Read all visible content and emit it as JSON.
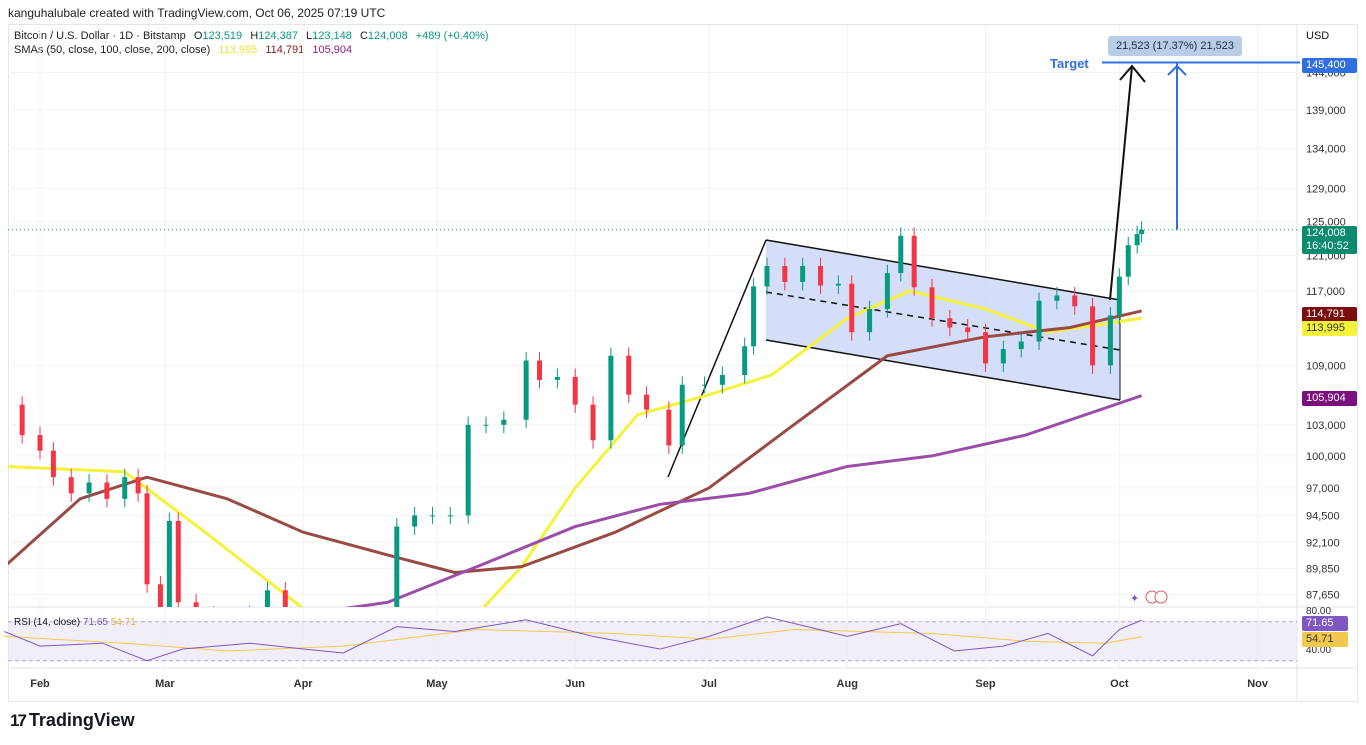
{
  "credit": "kanguhalubale created with TradingView.com, Oct 06, 2025 07:19 UTC",
  "legend": {
    "symbol": "Bitcoin / U.S. Dollar · 1D · Bitstamp",
    "open_label": "O",
    "open": "123,519",
    "high_label": "H",
    "high": "124,387",
    "low_label": "L",
    "low": "123,148",
    "close_label": "C",
    "close": "124,008",
    "change": "+489 (+0.40%)",
    "sma_label": "SMAs (50, close, 100, close, 200, close)",
    "sma50": "113,995",
    "sma100": "114,791",
    "sma200": "105,904"
  },
  "currency": "USD",
  "price_badges": {
    "target": "145,400",
    "last_price": "124,008",
    "countdown": "16:40:52",
    "sma100": "114,791",
    "sma50": "113,995",
    "sma200": "105,904"
  },
  "annotations": {
    "target_label": "Target",
    "measure_label": "21,523 (17.37%) 21,523"
  },
  "rsi": {
    "label": "RSI (14, close)",
    "value": "71.65",
    "ma_value": "54.71",
    "ticks": [
      "80.00",
      "40.00"
    ]
  },
  "brand": "TradingView",
  "colors": {
    "up": "#089981",
    "down": "#f23645",
    "sma50": "#f5f23a",
    "sma100": "#9a4a44",
    "sma200": "#9b4ea8",
    "target": "#2f6fe0",
    "rsi": "#7e57c2",
    "rsi_ma": "#f2c94c"
  },
  "chart_data": {
    "type": "candlestick",
    "scale": "log",
    "price_ticks": [
      "144,000",
      "139,000",
      "134,000",
      "129,000",
      "125,000",
      "121,000",
      "117,000",
      "109,000",
      "103,000",
      "100,000",
      "97,000",
      "94,500",
      "92,100",
      "89,850",
      "87,650"
    ],
    "price_tick_values": [
      144000,
      139000,
      134000,
      129000,
      125000,
      121000,
      117000,
      109000,
      103000,
      100000,
      97000,
      94500,
      92100,
      89850,
      87650
    ],
    "time_labels": [
      "Feb",
      "Mar",
      "Apr",
      "May",
      "Jun",
      "Jul",
      "Aug",
      "Sep",
      "Oct",
      "Nov"
    ],
    "time_label_dates": [
      "2025-02-01",
      "2025-03-01",
      "2025-04-01",
      "2025-05-01",
      "2025-06-01",
      "2025-07-01",
      "2025-08-01",
      "2025-09-01",
      "2025-10-01",
      "2025-11-01"
    ],
    "candles": [
      [
        "2025-01-24",
        105000
      ],
      [
        "2025-01-28",
        102000
      ],
      [
        "2025-02-01",
        100500
      ],
      [
        "2025-02-04",
        98000
      ],
      [
        "2025-02-08",
        96500
      ],
      [
        "2025-02-12",
        97500
      ],
      [
        "2025-02-16",
        96000
      ],
      [
        "2025-02-20",
        98000
      ],
      [
        "2025-02-23",
        96500
      ],
      [
        "2025-02-25",
        88500
      ],
      [
        "2025-02-28",
        84500
      ],
      [
        "2025-03-02",
        94000
      ],
      [
        "2025-03-04",
        87000
      ],
      [
        "2025-03-08",
        86000
      ],
      [
        "2025-03-12",
        83000
      ],
      [
        "2025-03-16",
        84000
      ],
      [
        "2025-03-20",
        86000
      ],
      [
        "2025-03-24",
        88000
      ],
      [
        "2025-03-28",
        84500
      ],
      [
        "2025-04-01",
        85000
      ],
      [
        "2025-04-06",
        78000
      ],
      [
        "2025-04-10",
        81000
      ],
      [
        "2025-04-15",
        84500
      ],
      [
        "2025-04-20",
        85000
      ],
      [
        "2025-04-22",
        93500
      ],
      [
        "2025-04-26",
        94500
      ],
      [
        "2025-04-30",
        94500
      ],
      [
        "2025-05-04",
        94500
      ],
      [
        "2025-05-08",
        103000
      ],
      [
        "2025-05-12",
        103000
      ],
      [
        "2025-05-16",
        103500
      ],
      [
        "2025-05-21",
        109500
      ],
      [
        "2025-05-24",
        107500
      ],
      [
        "2025-05-28",
        107800
      ],
      [
        "2025-06-01",
        105000
      ],
      [
        "2025-06-05",
        101500
      ],
      [
        "2025-06-09",
        110000
      ],
      [
        "2025-06-13",
        106000
      ],
      [
        "2025-06-17",
        104500
      ],
      [
        "2025-06-22",
        101000
      ],
      [
        "2025-06-25",
        107000
      ],
      [
        "2025-06-30",
        107000
      ],
      [
        "2025-07-04",
        108000
      ],
      [
        "2025-07-09",
        111000
      ],
      [
        "2025-07-11",
        117500
      ],
      [
        "2025-07-14",
        119800
      ],
      [
        "2025-07-18",
        118000
      ],
      [
        "2025-07-22",
        119800
      ],
      [
        "2025-07-26",
        117600
      ],
      [
        "2025-07-30",
        117800
      ],
      [
        "2025-08-02",
        112500
      ],
      [
        "2025-08-06",
        115000
      ],
      [
        "2025-08-10",
        119000
      ],
      [
        "2025-08-13",
        123300
      ],
      [
        "2025-08-16",
        117400
      ],
      [
        "2025-08-20",
        114000
      ],
      [
        "2025-08-24",
        113000
      ],
      [
        "2025-08-28",
        112500
      ],
      [
        "2025-09-01",
        109200
      ],
      [
        "2025-09-05",
        110700
      ],
      [
        "2025-09-09",
        111500
      ],
      [
        "2025-09-13",
        115900
      ],
      [
        "2025-09-17",
        116500
      ],
      [
        "2025-09-21",
        115300
      ],
      [
        "2025-09-25",
        109000
      ],
      [
        "2025-09-29",
        114300
      ],
      [
        "2025-10-01",
        118600
      ],
      [
        "2025-10-03",
        122200
      ],
      [
        "2025-10-05",
        123500
      ],
      [
        "2025-10-06",
        124008
      ]
    ],
    "series": [
      {
        "name": "SMA 50",
        "color_key": "sma50",
        "points": [
          [
            "2025-01-24",
            99000
          ],
          [
            "2025-02-20",
            98500
          ],
          [
            "2025-03-10",
            93000
          ],
          [
            "2025-04-01",
            86500
          ],
          [
            "2025-04-20",
            84500
          ],
          [
            "2025-05-10",
            86000
          ],
          [
            "2025-05-20",
            90000
          ],
          [
            "2025-06-01",
            97000
          ],
          [
            "2025-06-15",
            104000
          ],
          [
            "2025-07-01",
            106000
          ],
          [
            "2025-07-15",
            108000
          ],
          [
            "2025-08-01",
            114000
          ],
          [
            "2025-08-15",
            117000
          ],
          [
            "2025-09-01",
            115000
          ],
          [
            "2025-09-15",
            112500
          ],
          [
            "2025-10-06",
            113995
          ]
        ]
      },
      {
        "name": "SMA 100",
        "color_key": "sma100",
        "points": [
          [
            "2025-01-24",
            90000
          ],
          [
            "2025-02-10",
            96000
          ],
          [
            "2025-02-25",
            98000
          ],
          [
            "2025-03-15",
            96000
          ],
          [
            "2025-04-01",
            93000
          ],
          [
            "2025-04-20",
            91000
          ],
          [
            "2025-05-05",
            89500
          ],
          [
            "2025-05-20",
            90000
          ],
          [
            "2025-06-10",
            93000
          ],
          [
            "2025-07-01",
            97000
          ],
          [
            "2025-07-20",
            103000
          ],
          [
            "2025-08-10",
            110000
          ],
          [
            "2025-09-01",
            112000
          ],
          [
            "2025-09-20",
            113000
          ],
          [
            "2025-10-06",
            114791
          ]
        ]
      },
      {
        "name": "SMA 200",
        "color_key": "sma200",
        "points": [
          [
            "2025-04-01",
            86000
          ],
          [
            "2025-04-20",
            87000
          ],
          [
            "2025-05-10",
            90000
          ],
          [
            "2025-06-01",
            93500
          ],
          [
            "2025-06-20",
            95500
          ],
          [
            "2025-07-10",
            96500
          ],
          [
            "2025-08-01",
            99000
          ],
          [
            "2025-08-20",
            100000
          ],
          [
            "2025-09-10",
            102000
          ],
          [
            "2025-10-06",
            105904
          ]
        ]
      }
    ],
    "rsi_series": [
      [
        "2025-01-24",
        60
      ],
      [
        "2025-02-01",
        45
      ],
      [
        "2025-02-15",
        48
      ],
      [
        "2025-02-25",
        30
      ],
      [
        "2025-03-05",
        42
      ],
      [
        "2025-03-20",
        48
      ],
      [
        "2025-04-01",
        42
      ],
      [
        "2025-04-10",
        38
      ],
      [
        "2025-04-22",
        65
      ],
      [
        "2025-05-05",
        60
      ],
      [
        "2025-05-21",
        72
      ],
      [
        "2025-06-05",
        55
      ],
      [
        "2025-06-20",
        42
      ],
      [
        "2025-07-01",
        55
      ],
      [
        "2025-07-14",
        75
      ],
      [
        "2025-08-01",
        55
      ],
      [
        "2025-08-13",
        68
      ],
      [
        "2025-08-25",
        40
      ],
      [
        "2025-09-05",
        45
      ],
      [
        "2025-09-15",
        58
      ],
      [
        "2025-09-25",
        35
      ],
      [
        "2025-10-01",
        62
      ],
      [
        "2025-10-06",
        71.65
      ]
    ],
    "rsi_ma_series": [
      [
        "2025-01-24",
        55
      ],
      [
        "2025-02-20",
        48
      ],
      [
        "2025-03-15",
        40
      ],
      [
        "2025-04-10",
        45
      ],
      [
        "2025-05-10",
        62
      ],
      [
        "2025-06-10",
        58
      ],
      [
        "2025-07-01",
        52
      ],
      [
        "2025-07-20",
        62
      ],
      [
        "2025-08-20",
        58
      ],
      [
        "2025-09-10",
        50
      ],
      [
        "2025-09-28",
        48
      ],
      [
        "2025-10-06",
        54.71
      ]
    ],
    "target_price": 145400,
    "last_price": 124008
  }
}
